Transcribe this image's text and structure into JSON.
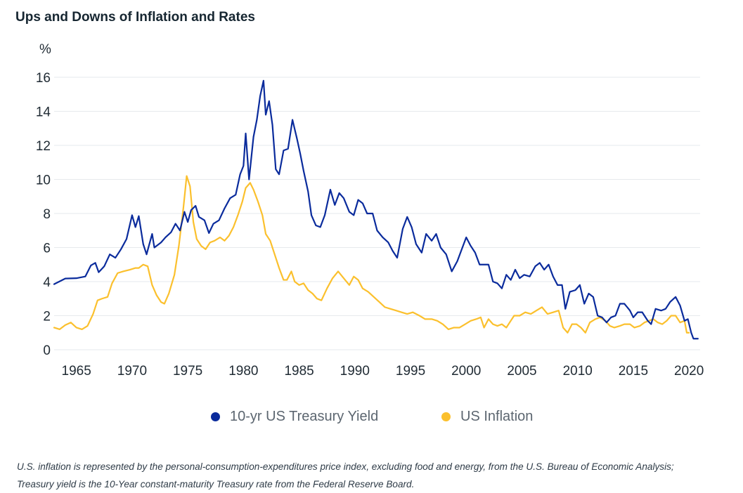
{
  "title": "Ups and Downs of Inflation and Rates",
  "footnote": {
    "line1": "U.S. inflation is represented by the personal-consumption-expenditures price index, excluding food and energy, from the U.S. Bureau of Economic Analysis;",
    "line2": "Treasury yield is the 10-Year constant-maturity Treasury rate from the Federal Reserve Board."
  },
  "chart_data": {
    "type": "line",
    "title": "Ups and Downs of Inflation and Rates",
    "xlabel": "",
    "ylabel": "%",
    "xlim": [
      1963,
      2021
    ],
    "ylim": [
      0,
      16
    ],
    "x_ticks": [
      1965,
      1970,
      1975,
      1980,
      1985,
      1990,
      1995,
      2000,
      2005,
      2010,
      2015,
      2020
    ],
    "y_ticks": [
      0,
      2,
      4,
      6,
      8,
      10,
      12,
      14,
      16
    ],
    "grid": "horizontal",
    "legend": "bottom-center",
    "series": [
      {
        "name": "10-yr US Treasury Yield",
        "color": "#0a2b9c",
        "points": [
          [
            1963.0,
            3.85
          ],
          [
            1964.0,
            4.18
          ],
          [
            1965.0,
            4.2
          ],
          [
            1965.8,
            4.3
          ],
          [
            1966.3,
            4.95
          ],
          [
            1966.7,
            5.1
          ],
          [
            1967.0,
            4.55
          ],
          [
            1967.5,
            4.9
          ],
          [
            1968.0,
            5.6
          ],
          [
            1968.5,
            5.4
          ],
          [
            1969.0,
            5.9
          ],
          [
            1969.5,
            6.5
          ],
          [
            1970.0,
            7.9
          ],
          [
            1970.3,
            7.2
          ],
          [
            1970.6,
            7.85
          ],
          [
            1971.0,
            6.2
          ],
          [
            1971.3,
            5.6
          ],
          [
            1971.8,
            6.8
          ],
          [
            1972.0,
            6.0
          ],
          [
            1972.6,
            6.3
          ],
          [
            1973.0,
            6.6
          ],
          [
            1973.5,
            6.9
          ],
          [
            1973.9,
            7.4
          ],
          [
            1974.3,
            7.0
          ],
          [
            1974.7,
            8.1
          ],
          [
            1975.0,
            7.5
          ],
          [
            1975.3,
            8.2
          ],
          [
            1975.7,
            8.45
          ],
          [
            1976.0,
            7.8
          ],
          [
            1976.5,
            7.6
          ],
          [
            1976.9,
            6.85
          ],
          [
            1977.3,
            7.4
          ],
          [
            1977.8,
            7.6
          ],
          [
            1978.3,
            8.3
          ],
          [
            1978.8,
            8.9
          ],
          [
            1979.3,
            9.1
          ],
          [
            1979.7,
            10.3
          ],
          [
            1980.0,
            10.8
          ],
          [
            1980.2,
            12.7
          ],
          [
            1980.5,
            10.0
          ],
          [
            1980.9,
            12.5
          ],
          [
            1981.2,
            13.5
          ],
          [
            1981.5,
            14.9
          ],
          [
            1981.8,
            15.8
          ],
          [
            1982.0,
            13.8
          ],
          [
            1982.3,
            14.6
          ],
          [
            1982.6,
            13.2
          ],
          [
            1982.9,
            10.6
          ],
          [
            1983.2,
            10.3
          ],
          [
            1983.6,
            11.7
          ],
          [
            1984.0,
            11.8
          ],
          [
            1984.4,
            13.5
          ],
          [
            1984.8,
            12.4
          ],
          [
            1985.1,
            11.5
          ],
          [
            1985.4,
            10.5
          ],
          [
            1985.8,
            9.3
          ],
          [
            1986.1,
            7.9
          ],
          [
            1986.5,
            7.3
          ],
          [
            1986.9,
            7.2
          ],
          [
            1987.3,
            7.9
          ],
          [
            1987.8,
            9.4
          ],
          [
            1988.2,
            8.5
          ],
          [
            1988.6,
            9.2
          ],
          [
            1989.0,
            8.9
          ],
          [
            1989.5,
            8.1
          ],
          [
            1989.9,
            7.9
          ],
          [
            1990.3,
            8.8
          ],
          [
            1990.7,
            8.6
          ],
          [
            1991.1,
            8.0
          ],
          [
            1991.6,
            8.0
          ],
          [
            1992.0,
            7.0
          ],
          [
            1992.5,
            6.6
          ],
          [
            1993.0,
            6.3
          ],
          [
            1993.4,
            5.8
          ],
          [
            1993.8,
            5.4
          ],
          [
            1994.3,
            7.1
          ],
          [
            1994.7,
            7.8
          ],
          [
            1995.1,
            7.2
          ],
          [
            1995.5,
            6.2
          ],
          [
            1996.0,
            5.7
          ],
          [
            1996.4,
            6.8
          ],
          [
            1996.9,
            6.4
          ],
          [
            1997.3,
            6.8
          ],
          [
            1997.7,
            6.0
          ],
          [
            1998.2,
            5.6
          ],
          [
            1998.7,
            4.6
          ],
          [
            1999.2,
            5.2
          ],
          [
            1999.6,
            5.9
          ],
          [
            2000.0,
            6.6
          ],
          [
            2000.4,
            6.1
          ],
          [
            2000.8,
            5.7
          ],
          [
            2001.2,
            5.0
          ],
          [
            2001.6,
            5.0
          ],
          [
            2002.0,
            5.0
          ],
          [
            2002.4,
            4.0
          ],
          [
            2002.8,
            3.9
          ],
          [
            2003.2,
            3.6
          ],
          [
            2003.6,
            4.4
          ],
          [
            2004.0,
            4.1
          ],
          [
            2004.4,
            4.7
          ],
          [
            2004.8,
            4.2
          ],
          [
            2005.2,
            4.4
          ],
          [
            2005.7,
            4.3
          ],
          [
            2006.2,
            4.9
          ],
          [
            2006.6,
            5.1
          ],
          [
            2007.0,
            4.7
          ],
          [
            2007.4,
            5.0
          ],
          [
            2007.8,
            4.3
          ],
          [
            2008.2,
            3.8
          ],
          [
            2008.6,
            3.8
          ],
          [
            2008.9,
            2.4
          ],
          [
            2009.3,
            3.4
          ],
          [
            2009.8,
            3.5
          ],
          [
            2010.2,
            3.8
          ],
          [
            2010.6,
            2.7
          ],
          [
            2011.0,
            3.3
          ],
          [
            2011.4,
            3.1
          ],
          [
            2011.8,
            2.0
          ],
          [
            2012.2,
            1.9
          ],
          [
            2012.6,
            1.6
          ],
          [
            2013.0,
            1.9
          ],
          [
            2013.4,
            2.0
          ],
          [
            2013.8,
            2.7
          ],
          [
            2014.2,
            2.7
          ],
          [
            2014.7,
            2.3
          ],
          [
            2015.0,
            1.9
          ],
          [
            2015.4,
            2.2
          ],
          [
            2015.8,
            2.2
          ],
          [
            2016.3,
            1.7
          ],
          [
            2016.6,
            1.5
          ],
          [
            2017.0,
            2.4
          ],
          [
            2017.5,
            2.3
          ],
          [
            2017.9,
            2.4
          ],
          [
            2018.3,
            2.8
          ],
          [
            2018.8,
            3.1
          ],
          [
            2019.2,
            2.6
          ],
          [
            2019.6,
            1.7
          ],
          [
            2019.9,
            1.8
          ],
          [
            2020.2,
            1.0
          ],
          [
            2020.4,
            0.65
          ],
          [
            2020.8,
            0.65
          ]
        ]
      },
      {
        "name": "US Inflation",
        "color": "#fbc02d",
        "points": [
          [
            1963.0,
            1.3
          ],
          [
            1963.5,
            1.2
          ],
          [
            1964.0,
            1.45
          ],
          [
            1964.5,
            1.6
          ],
          [
            1965.0,
            1.3
          ],
          [
            1965.5,
            1.2
          ],
          [
            1966.0,
            1.4
          ],
          [
            1966.5,
            2.1
          ],
          [
            1966.9,
            2.9
          ],
          [
            1967.3,
            3.0
          ],
          [
            1967.8,
            3.1
          ],
          [
            1968.2,
            3.9
          ],
          [
            1968.7,
            4.5
          ],
          [
            1969.2,
            4.6
          ],
          [
            1969.8,
            4.7
          ],
          [
            1970.3,
            4.8
          ],
          [
            1970.6,
            4.8
          ],
          [
            1971.0,
            5.0
          ],
          [
            1971.4,
            4.9
          ],
          [
            1971.8,
            3.8
          ],
          [
            1972.2,
            3.2
          ],
          [
            1972.6,
            2.8
          ],
          [
            1972.9,
            2.7
          ],
          [
            1973.3,
            3.3
          ],
          [
            1973.8,
            4.4
          ],
          [
            1974.2,
            6.1
          ],
          [
            1974.6,
            8.3
          ],
          [
            1974.9,
            10.2
          ],
          [
            1975.2,
            9.6
          ],
          [
            1975.5,
            7.5
          ],
          [
            1975.8,
            6.5
          ],
          [
            1976.2,
            6.1
          ],
          [
            1976.6,
            5.9
          ],
          [
            1977.0,
            6.3
          ],
          [
            1977.4,
            6.4
          ],
          [
            1977.9,
            6.6
          ],
          [
            1978.3,
            6.4
          ],
          [
            1978.7,
            6.7
          ],
          [
            1979.1,
            7.2
          ],
          [
            1979.5,
            7.9
          ],
          [
            1979.9,
            8.7
          ],
          [
            1980.2,
            9.5
          ],
          [
            1980.6,
            9.8
          ],
          [
            1980.9,
            9.4
          ],
          [
            1981.3,
            8.7
          ],
          [
            1981.7,
            7.9
          ],
          [
            1982.0,
            6.8
          ],
          [
            1982.4,
            6.4
          ],
          [
            1982.8,
            5.6
          ],
          [
            1983.2,
            4.8
          ],
          [
            1983.6,
            4.1
          ],
          [
            1983.9,
            4.1
          ],
          [
            1984.3,
            4.6
          ],
          [
            1984.6,
            4.0
          ],
          [
            1985.0,
            3.8
          ],
          [
            1985.4,
            3.9
          ],
          [
            1985.8,
            3.5
          ],
          [
            1986.2,
            3.3
          ],
          [
            1986.6,
            3.0
          ],
          [
            1987.0,
            2.9
          ],
          [
            1987.5,
            3.6
          ],
          [
            1988.0,
            4.2
          ],
          [
            1988.5,
            4.6
          ],
          [
            1989.0,
            4.2
          ],
          [
            1989.5,
            3.8
          ],
          [
            1989.9,
            4.3
          ],
          [
            1990.3,
            4.1
          ],
          [
            1990.7,
            3.6
          ],
          [
            1991.2,
            3.4
          ],
          [
            1991.7,
            3.1
          ],
          [
            1992.2,
            2.8
          ],
          [
            1992.7,
            2.5
          ],
          [
            1993.2,
            2.4
          ],
          [
            1993.7,
            2.3
          ],
          [
            1994.2,
            2.2
          ],
          [
            1994.7,
            2.1
          ],
          [
            1995.2,
            2.2
          ],
          [
            1995.8,
            2.0
          ],
          [
            1996.3,
            1.8
          ],
          [
            1996.9,
            1.8
          ],
          [
            1997.4,
            1.7
          ],
          [
            1997.9,
            1.5
          ],
          [
            1998.4,
            1.2
          ],
          [
            1998.9,
            1.3
          ],
          [
            1999.4,
            1.3
          ],
          [
            1999.9,
            1.5
          ],
          [
            2000.4,
            1.7
          ],
          [
            2000.9,
            1.8
          ],
          [
            2001.3,
            1.9
          ],
          [
            2001.6,
            1.3
          ],
          [
            2002.0,
            1.8
          ],
          [
            2002.4,
            1.5
          ],
          [
            2002.8,
            1.4
          ],
          [
            2003.2,
            1.5
          ],
          [
            2003.6,
            1.3
          ],
          [
            2003.9,
            1.6
          ],
          [
            2004.3,
            2.0
          ],
          [
            2004.8,
            2.0
          ],
          [
            2005.3,
            2.2
          ],
          [
            2005.8,
            2.1
          ],
          [
            2006.3,
            2.3
          ],
          [
            2006.8,
            2.5
          ],
          [
            2007.3,
            2.1
          ],
          [
            2007.8,
            2.2
          ],
          [
            2008.3,
            2.3
          ],
          [
            2008.7,
            1.3
          ],
          [
            2009.1,
            1.0
          ],
          [
            2009.5,
            1.5
          ],
          [
            2009.9,
            1.5
          ],
          [
            2010.3,
            1.3
          ],
          [
            2010.7,
            1.0
          ],
          [
            2011.1,
            1.6
          ],
          [
            2011.6,
            1.8
          ],
          [
            2012.0,
            1.9
          ],
          [
            2012.5,
            1.7
          ],
          [
            2012.9,
            1.4
          ],
          [
            2013.3,
            1.3
          ],
          [
            2013.8,
            1.4
          ],
          [
            2014.2,
            1.5
          ],
          [
            2014.7,
            1.5
          ],
          [
            2015.1,
            1.3
          ],
          [
            2015.6,
            1.4
          ],
          [
            2016.0,
            1.6
          ],
          [
            2016.4,
            1.7
          ],
          [
            2016.8,
            1.8
          ],
          [
            2017.2,
            1.6
          ],
          [
            2017.6,
            1.5
          ],
          [
            2018.0,
            1.7
          ],
          [
            2018.4,
            2.0
          ],
          [
            2018.8,
            2.0
          ],
          [
            2019.2,
            1.6
          ],
          [
            2019.6,
            1.7
          ],
          [
            2019.8,
            1.0
          ],
          [
            2020.0,
            1.0
          ]
        ]
      }
    ]
  }
}
